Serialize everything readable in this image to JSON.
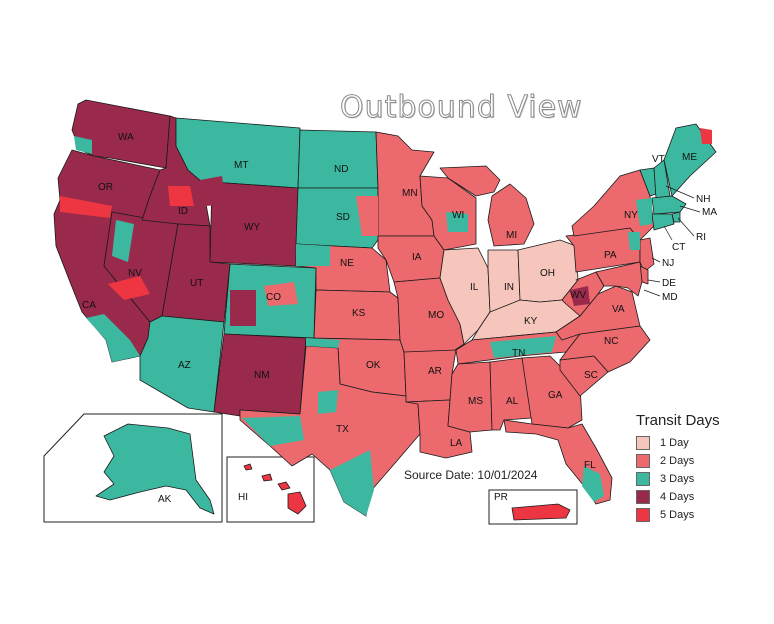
{
  "title": "Outbound View",
  "source_date": "Source Date: 10/01/2024",
  "legend": {
    "title": "Transit Days",
    "items": [
      {
        "label": "1 Day",
        "color": "#f6c6bd"
      },
      {
        "label": "2 Days",
        "color": "#ec6a6e"
      },
      {
        "label": "3 Days",
        "color": "#3db8a0"
      },
      {
        "label": "4 Days",
        "color": "#9a2a4c"
      },
      {
        "label": "5 Days",
        "color": "#ee3643"
      }
    ]
  },
  "states": [
    {
      "abbr": "WA",
      "transit_days": 4
    },
    {
      "abbr": "OR",
      "transit_days": 4
    },
    {
      "abbr": "CA",
      "transit_days": 4
    },
    {
      "abbr": "NV",
      "transit_days": 4
    },
    {
      "abbr": "ID",
      "transit_days": 4
    },
    {
      "abbr": "MT",
      "transit_days": 3
    },
    {
      "abbr": "WY",
      "transit_days": 4
    },
    {
      "abbr": "UT",
      "transit_days": 4
    },
    {
      "abbr": "AZ",
      "transit_days": 3
    },
    {
      "abbr": "CO",
      "transit_days": 3
    },
    {
      "abbr": "NM",
      "transit_days": 4
    },
    {
      "abbr": "ND",
      "transit_days": 3
    },
    {
      "abbr": "SD",
      "transit_days": 3
    },
    {
      "abbr": "NE",
      "transit_days": 2
    },
    {
      "abbr": "KS",
      "transit_days": 2
    },
    {
      "abbr": "OK",
      "transit_days": 2
    },
    {
      "abbr": "TX",
      "transit_days": 2
    },
    {
      "abbr": "MN",
      "transit_days": 2
    },
    {
      "abbr": "IA",
      "transit_days": 2
    },
    {
      "abbr": "MO",
      "transit_days": 2
    },
    {
      "abbr": "AR",
      "transit_days": 2
    },
    {
      "abbr": "LA",
      "transit_days": 2
    },
    {
      "abbr": "WI",
      "transit_days": 2
    },
    {
      "abbr": "IL",
      "transit_days": 1
    },
    {
      "abbr": "MI",
      "transit_days": 2
    },
    {
      "abbr": "IN",
      "transit_days": 1
    },
    {
      "abbr": "OH",
      "transit_days": 1
    },
    {
      "abbr": "KY",
      "transit_days": 1
    },
    {
      "abbr": "TN",
      "transit_days": 2
    },
    {
      "abbr": "MS",
      "transit_days": 2
    },
    {
      "abbr": "AL",
      "transit_days": 2
    },
    {
      "abbr": "GA",
      "transit_days": 2
    },
    {
      "abbr": "FL",
      "transit_days": 2
    },
    {
      "abbr": "SC",
      "transit_days": 2
    },
    {
      "abbr": "NC",
      "transit_days": 2
    },
    {
      "abbr": "VA",
      "transit_days": 2
    },
    {
      "abbr": "WV",
      "transit_days": 2
    },
    {
      "abbr": "PA",
      "transit_days": 2
    },
    {
      "abbr": "NY",
      "transit_days": 2
    },
    {
      "abbr": "VT",
      "transit_days": 3
    },
    {
      "abbr": "NH",
      "transit_days": 3
    },
    {
      "abbr": "ME",
      "transit_days": 3
    },
    {
      "abbr": "MA",
      "transit_days": 3
    },
    {
      "abbr": "RI",
      "transit_days": 3
    },
    {
      "abbr": "CT",
      "transit_days": 3
    },
    {
      "abbr": "NJ",
      "transit_days": 2
    },
    {
      "abbr": "DE",
      "transit_days": 2
    },
    {
      "abbr": "MD",
      "transit_days": 2
    },
    {
      "abbr": "AK",
      "transit_days": 3
    },
    {
      "abbr": "HI",
      "transit_days": 5
    },
    {
      "abbr": "PR",
      "transit_days": 5
    }
  ]
}
